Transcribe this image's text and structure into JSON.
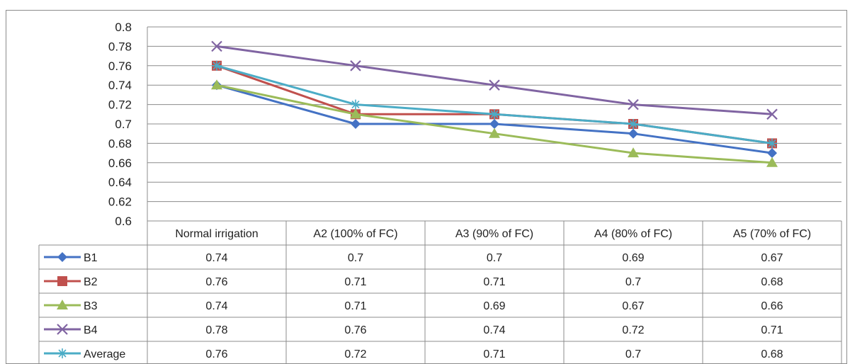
{
  "chart_data": {
    "type": "line",
    "categories": [
      "Normal irrigation",
      "A2 (100% of FC)",
      "A3 (90% of FC)",
      "A4 (80% of FC)",
      "A5 (70% of FC)"
    ],
    "ylim": [
      0.6,
      0.8
    ],
    "ytick_step": 0.02,
    "yticks": [
      "0.8",
      "0.78",
      "0.76",
      "0.74",
      "0.72",
      "0.7",
      "0.68",
      "0.66",
      "0.64",
      "0.62",
      "0.6"
    ],
    "grid": true,
    "legend": "data-table",
    "series": [
      {
        "name": "B1",
        "values": [
          0.74,
          0.7,
          0.7,
          0.69,
          0.67
        ],
        "labels": [
          "0.74",
          "0.7",
          "0.7",
          "0.69",
          "0.67"
        ],
        "color": "#4472C4",
        "marker": "diamond"
      },
      {
        "name": "B2",
        "values": [
          0.76,
          0.71,
          0.71,
          0.7,
          0.68
        ],
        "labels": [
          "0.76",
          "0.71",
          "0.71",
          "0.7",
          "0.68"
        ],
        "color": "#C0504D",
        "marker": "square"
      },
      {
        "name": "B3",
        "values": [
          0.74,
          0.71,
          0.69,
          0.67,
          0.66
        ],
        "labels": [
          "0.74",
          "0.71",
          "0.69",
          "0.67",
          "0.66"
        ],
        "color": "#9BBB59",
        "marker": "triangle"
      },
      {
        "name": "B4",
        "values": [
          0.78,
          0.76,
          0.74,
          0.72,
          0.71
        ],
        "labels": [
          "0.78",
          "0.76",
          "0.74",
          "0.72",
          "0.71"
        ],
        "color": "#8064A2",
        "marker": "x"
      },
      {
        "name": "Average",
        "values": [
          0.76,
          0.72,
          0.71,
          0.7,
          0.68
        ],
        "labels": [
          "0.76",
          "0.72",
          "0.71",
          "0.7",
          "0.68"
        ],
        "color": "#4BACC6",
        "marker": "star"
      }
    ]
  }
}
